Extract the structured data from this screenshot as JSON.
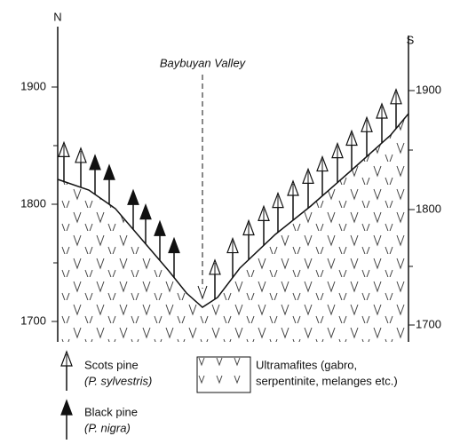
{
  "labels": {
    "north": "N",
    "south": "S",
    "valley": "Baybuyan Valley"
  },
  "left_axis": {
    "ticks": [
      1900,
      1800,
      1700
    ]
  },
  "right_axis": {
    "ticks": [
      1900,
      1800,
      1700
    ]
  },
  "legend": {
    "scots": {
      "label": "Scots pine",
      "sublabel": "(P. sylvestris)"
    },
    "black": {
      "label": "Black pine",
      "sublabel": "(P. nigra)"
    },
    "rock": {
      "label": "Ultramafites (gabro,",
      "sublabel": "serpentinite, melanges etc.)"
    }
  }
}
